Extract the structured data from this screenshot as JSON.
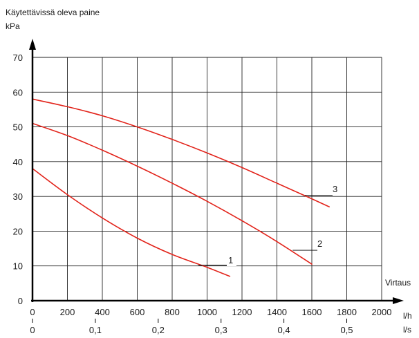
{
  "chart_data": {
    "type": "line",
    "title": "",
    "ylabel": "Käytettävissä oleva paine",
    "yunit": "kPa",
    "xlabel": "Virtaus",
    "xunit": "l/h",
    "x2unit": "l/s",
    "xlim": [
      0,
      2000
    ],
    "ylim": [
      0,
      70
    ],
    "xticks": [
      "0",
      "200",
      "400",
      "600",
      "800",
      "1000",
      "1200",
      "1400",
      "1600",
      "1800",
      "2000"
    ],
    "yticks": [
      "0",
      "10",
      "20",
      "30",
      "40",
      "50",
      "60",
      "70"
    ],
    "x2ticks": [
      {
        "value": 0,
        "label": "0"
      },
      {
        "value": 0.1,
        "label": "0,1"
      },
      {
        "value": 0.2,
        "label": "0,2"
      },
      {
        "value": 0.3,
        "label": "0,3"
      },
      {
        "value": 0.4,
        "label": "0,4"
      },
      {
        "value": 0.5,
        "label": "0,5"
      }
    ],
    "grid": true,
    "color": "#e2231a",
    "series": [
      {
        "name": "1",
        "x": [
          0,
          200,
          400,
          600,
          800,
          1000,
          1130
        ],
        "y": [
          38,
          30.5,
          23.8,
          18,
          13.3,
          9.6,
          7
        ]
      },
      {
        "name": "2",
        "x": [
          0,
          200,
          400,
          600,
          800,
          1000,
          1200,
          1400,
          1600
        ],
        "y": [
          51,
          47.5,
          43.3,
          38.7,
          33.8,
          28.6,
          23,
          17,
          10.5
        ]
      },
      {
        "name": "3",
        "x": [
          0,
          200,
          400,
          600,
          800,
          1000,
          1200,
          1400,
          1600,
          1700
        ],
        "y": [
          58,
          55.8,
          53.2,
          50,
          46.4,
          42.5,
          38.3,
          33.8,
          29.3,
          27
        ]
      }
    ]
  }
}
